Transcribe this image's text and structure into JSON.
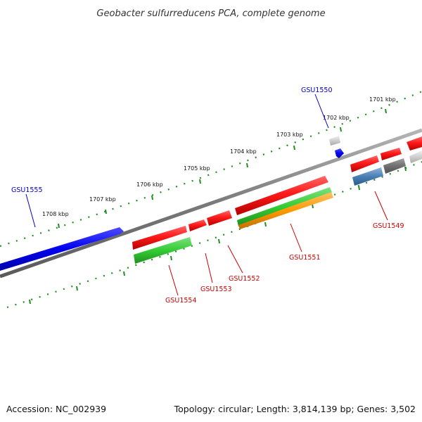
{
  "title": "Geobacter sulfurreducens PCA, complete genome",
  "footer": {
    "accession": "Accession: NC_002939",
    "summary": "Topology: circular; Length: 3,814,139 bp; Genes: 3,502"
  },
  "ruler": [
    "1701 kbp",
    "1702 kbp",
    "1703 kbp",
    "1704 kbp",
    "1705 kbp",
    "1706 kbp",
    "1707 kbp",
    "1708 kbp"
  ],
  "genes": {
    "gsu1550": "GSU1550",
    "gsu1555": "GSU1555",
    "gsu1549": "GSU1549",
    "gsu1551": "GSU1551",
    "gsu1552": "GSU1552",
    "gsu1553": "GSU1553",
    "gsu1554": "GSU1554"
  },
  "colors": {
    "blue_label": "#0000cc",
    "red_label": "#cc0000",
    "tick_green": "#228b22",
    "backbone": "#808080"
  }
}
